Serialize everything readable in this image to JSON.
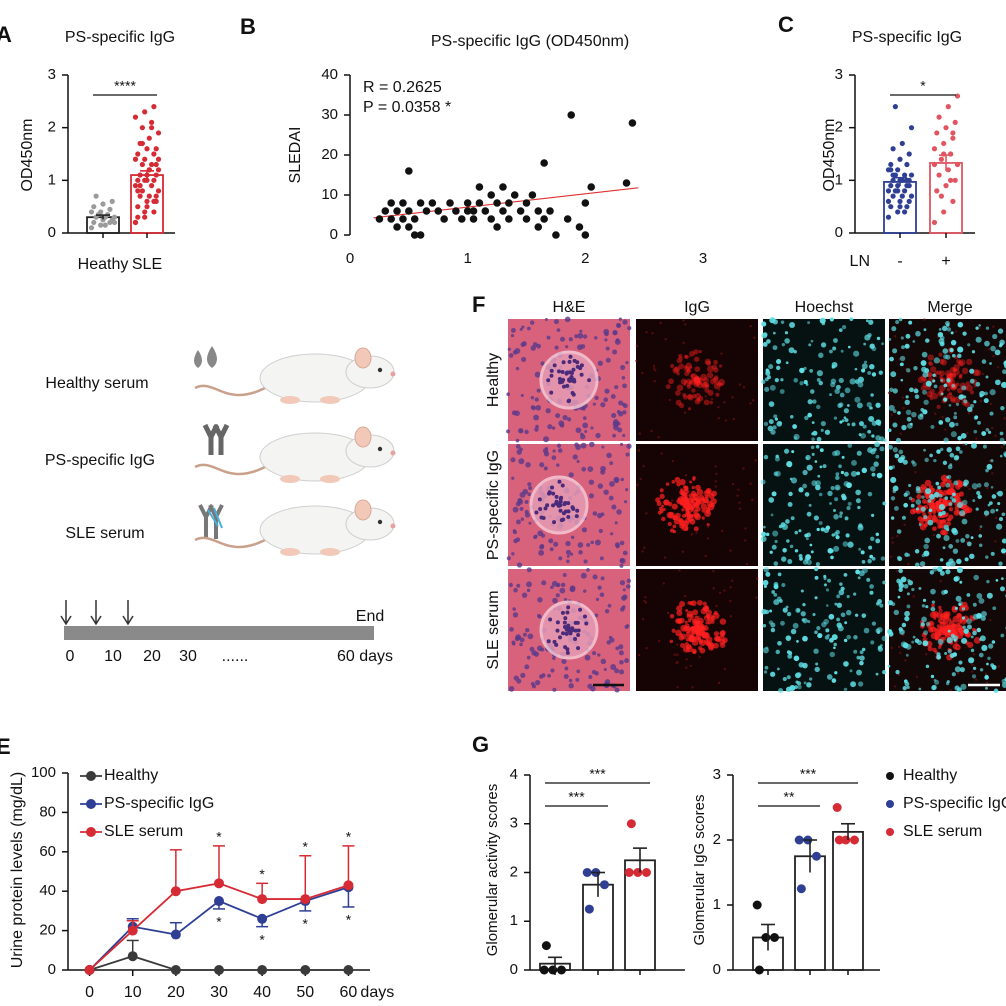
{
  "chart_data": [
    {
      "type": "bar",
      "title": "PS-specific IgG",
      "ylabel": "OD450nm",
      "categories": [
        "Heathy",
        "SLE"
      ],
      "values": [
        0.3,
        1.1
      ],
      "errors": [
        0.04,
        0.08
      ],
      "colors": [
        "#222222",
        "#d62b34"
      ],
      "point_colors": [
        "#9a9a9a",
        "#d62b34"
      ],
      "points": [
        [
          0.1,
          0.15,
          0.2,
          0.2,
          0.25,
          0.25,
          0.3,
          0.3,
          0.3,
          0.35,
          0.35,
          0.4,
          0.4,
          0.45,
          0.5,
          0.55,
          0.6,
          0.7,
          0.15,
          0.2
        ],
        [
          0.2,
          0.3,
          0.4,
          0.5,
          0.6,
          0.6,
          0.7,
          0.7,
          0.8,
          0.8,
          0.9,
          0.9,
          1.0,
          1.0,
          1.0,
          1.1,
          1.1,
          1.1,
          1.2,
          1.2,
          1.3,
          1.3,
          1.4,
          1.4,
          1.5,
          1.5,
          1.6,
          1.6,
          1.7,
          1.8,
          1.9,
          2.0,
          2.1,
          2.2,
          2.3,
          2.4,
          0.3,
          0.5,
          0.7,
          0.9,
          1.2,
          1.4,
          1.7,
          2.0,
          0.2,
          0.4,
          0.6,
          0.8,
          1.0,
          1.3
        ]
      ],
      "ylim": [
        0,
        3
      ],
      "yticks": [
        0,
        1,
        2,
        3
      ],
      "significance": [
        "****"
      ]
    },
    {
      "type": "scatter",
      "title": "PS-specific IgG (OD450nm)",
      "ylabel": "SLEDAI",
      "color": "#111111",
      "annotations": [
        "R = 0.2625",
        "P = 0.0358 *"
      ],
      "x": [
        0.25,
        0.3,
        0.35,
        0.35,
        0.4,
        0.4,
        0.45,
        0.45,
        0.5,
        0.5,
        0.55,
        0.55,
        0.6,
        0.6,
        0.65,
        0.5,
        0.7,
        0.75,
        0.8,
        0.85,
        0.9,
        0.95,
        1.0,
        1.0,
        1.05,
        1.05,
        1.1,
        1.1,
        1.15,
        1.2,
        1.2,
        1.25,
        1.25,
        1.3,
        1.3,
        1.35,
        1.35,
        1.4,
        1.45,
        1.5,
        1.5,
        1.55,
        1.6,
        1.6,
        1.65,
        1.65,
        1.7,
        1.75,
        1.85,
        1.88,
        1.95,
        2.0,
        2.0,
        2.05,
        2.35,
        2.4
      ],
      "y": [
        4,
        6,
        8,
        4,
        2,
        6,
        8,
        4,
        2,
        6,
        0,
        4,
        0,
        8,
        6,
        16,
        8,
        6,
        4,
        8,
        6,
        4,
        6,
        8,
        4,
        6,
        8,
        12,
        6,
        10,
        4,
        8,
        2,
        6,
        12,
        8,
        4,
        10,
        6,
        8,
        4,
        10,
        6,
        2,
        18,
        4,
        6,
        0,
        4,
        30,
        2,
        0,
        8,
        12,
        13,
        28
      ],
      "fit": {
        "x": [
          0.2,
          2.45
        ],
        "y": [
          4.3,
          11.8
        ],
        "color": "#e03030"
      },
      "xlim": [
        0,
        3
      ],
      "ylim": [
        0,
        40
      ],
      "xticks": [
        0,
        1,
        2,
        3
      ],
      "yticks": [
        0,
        10,
        20,
        30,
        40
      ]
    },
    {
      "type": "bar",
      "title": "PS-specific IgG",
      "ylabel": "OD450nm",
      "xlabel": "LN",
      "categories": [
        "-",
        "+"
      ],
      "values": [
        0.97,
        1.33
      ],
      "errors": [
        0.08,
        0.15
      ],
      "colors": [
        "#2e3f94",
        "#e05560"
      ],
      "point_colors": [
        "#2e3f94",
        "#e05560"
      ],
      "points": [
        [
          0.3,
          0.4,
          0.5,
          0.5,
          0.6,
          0.6,
          0.7,
          0.7,
          0.7,
          0.8,
          0.8,
          0.8,
          0.9,
          0.9,
          0.9,
          1.0,
          1.0,
          1.0,
          1.0,
          1.1,
          1.1,
          1.1,
          1.2,
          1.2,
          1.3,
          1.3,
          1.4,
          1.5,
          1.6,
          1.7,
          2.0,
          2.4,
          0.4,
          0.6,
          0.8,
          1.0,
          1.2,
          0.5,
          0.9,
          1.1
        ],
        [
          0.2,
          0.4,
          0.6,
          0.8,
          0.9,
          1.0,
          1.1,
          1.2,
          1.3,
          1.4,
          1.5,
          1.6,
          1.7,
          1.8,
          1.9,
          2.0,
          2.1,
          2.2,
          2.4,
          2.6,
          0.7,
          1.0,
          1.3,
          1.5,
          1.9
        ]
      ],
      "ylim": [
        0,
        3
      ],
      "yticks": [
        0,
        1,
        2,
        3
      ],
      "significance": [
        "*"
      ]
    },
    {
      "type": "line",
      "ylabel": "Urine protein levels (mg/dL)",
      "xlabel": "days",
      "x": [
        0,
        10,
        20,
        30,
        40,
        50,
        60
      ],
      "series": [
        {
          "name": "Healthy",
          "color": "#3a3a3a",
          "values": [
            0,
            7,
            0,
            0,
            0,
            0,
            0
          ],
          "errors": [
            0,
            8,
            0,
            0,
            0,
            0,
            0
          ],
          "stars": [
            null,
            null,
            null,
            null,
            null,
            null,
            null
          ]
        },
        {
          "name": "PS-specific IgG",
          "color": "#2e3f94",
          "values": [
            0,
            22,
            18,
            35,
            26,
            35,
            42
          ],
          "errors": [
            0,
            4,
            6,
            4,
            4,
            5,
            10
          ],
          "stars": [
            null,
            null,
            null,
            "*",
            "*",
            "*",
            "*"
          ]
        },
        {
          "name": "SLE serum",
          "color": "#d62b34",
          "values": [
            0,
            20,
            40,
            44,
            36,
            36,
            43
          ],
          "errors": [
            0,
            5,
            21,
            19,
            8,
            22,
            20
          ],
          "stars": [
            null,
            null,
            null,
            "*",
            "*",
            "*",
            "*"
          ]
        }
      ],
      "xlim": [
        -5,
        65
      ],
      "ylim": [
        0,
        100
      ],
      "xticks": [
        0,
        10,
        20,
        30,
        40,
        50,
        60
      ],
      "yticks": [
        0,
        20,
        40,
        60,
        80,
        100
      ]
    },
    {
      "type": "bar",
      "ylabel": "Glomerular activity scores",
      "categories": [
        null,
        null,
        null
      ],
      "values": [
        0.13,
        1.75,
        2.25
      ],
      "errors": [
        0.13,
        0.25,
        0.25
      ],
      "colors": [
        "#222222",
        "#222222",
        "#222222"
      ],
      "point_colors": [
        "#111111",
        "#2e3f94",
        "#d62b34"
      ],
      "points": [
        [
          0,
          0,
          0,
          0.5
        ],
        [
          2,
          2,
          1.75,
          1.25
        ],
        [
          2,
          2,
          2,
          3
        ]
      ],
      "ylim": [
        0,
        4
      ],
      "yticks": [
        0,
        1,
        2,
        3,
        4
      ],
      "significance": [
        "***",
        "***"
      ]
    },
    {
      "type": "bar",
      "ylabel": "Glomerular IgG scores",
      "categories": [
        null,
        null,
        null
      ],
      "values": [
        0.5,
        1.75,
        2.125
      ],
      "errors": [
        0.2,
        0.25,
        0.125
      ],
      "colors": [
        "#222222",
        "#222222",
        "#222222"
      ],
      "point_colors": [
        "#111111",
        "#2e3f94",
        "#d62b34"
      ],
      "points": [
        [
          1,
          0.5,
          0.5,
          0
        ],
        [
          2,
          2,
          1.75,
          1.25
        ],
        [
          2.5,
          2,
          2,
          2
        ]
      ],
      "ylim": [
        0,
        3
      ],
      "yticks": [
        0,
        1,
        2,
        3
      ],
      "significance": [
        "***",
        "**"
      ],
      "legend": [
        "Healthy",
        "PS-specific IgG",
        "SLE serum"
      ]
    }
  ],
  "panel_labels": [
    "A",
    "B",
    "C",
    "F",
    "E",
    "G"
  ],
  "diagram": {
    "groups": [
      "Healthy serum",
      "PS-specific IgG",
      "SLE serum"
    ],
    "timeline": {
      "end": "End",
      "ticks": [
        "0",
        "10",
        "20",
        "30",
        "......",
        "60 days"
      ]
    }
  },
  "images": {
    "columns": [
      "H&E",
      "IgG",
      "Hoechst",
      "Merge"
    ],
    "rows": [
      "Healthy",
      "PS-specific IgG",
      "SLE serum"
    ]
  }
}
